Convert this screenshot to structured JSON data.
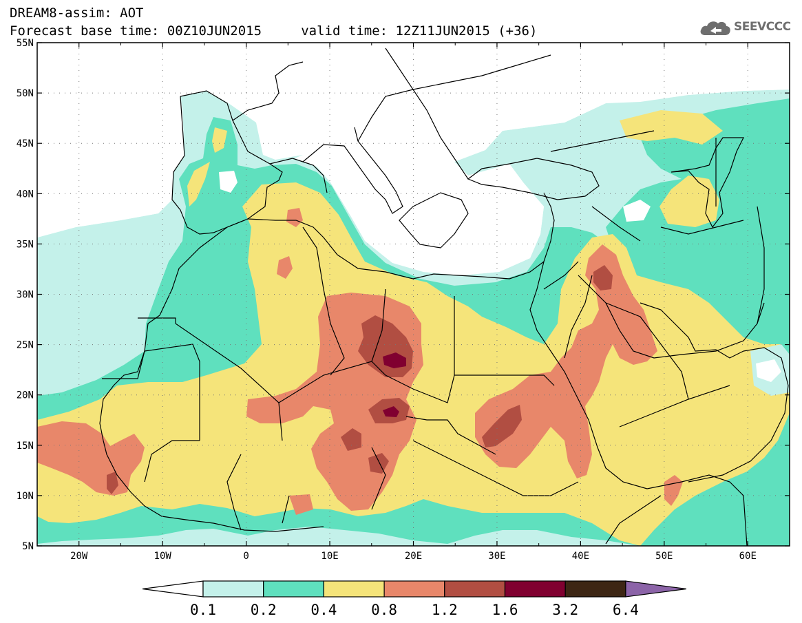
{
  "header": {
    "title_line_1": "DREAM8-assim: AOT",
    "title_line_2": "Forecast base time: 00Z10JUN2015     valid time: 12Z11JUN2015 (+36)",
    "logo_text": "SEEVCCC",
    "logo_icon": "cloud-logo-icon"
  },
  "map": {
    "lon_range": [
      -25,
      65
    ],
    "lat_range": [
      5,
      55
    ],
    "x_ticks": [
      {
        "lon": -20,
        "label": "20W"
      },
      {
        "lon": -10,
        "label": "10W"
      },
      {
        "lon": 0,
        "label": "0"
      },
      {
        "lon": 10,
        "label": "10E"
      },
      {
        "lon": 20,
        "label": "20E"
      },
      {
        "lon": 30,
        "label": "30E"
      },
      {
        "lon": 40,
        "label": "40E"
      },
      {
        "lon": 50,
        "label": "50E"
      },
      {
        "lon": 60,
        "label": "60E"
      }
    ],
    "y_ticks": [
      {
        "lat": 55,
        "label": "55N"
      },
      {
        "lat": 50,
        "label": "50N"
      },
      {
        "lat": 45,
        "label": "45N"
      },
      {
        "lat": 40,
        "label": "40N"
      },
      {
        "lat": 35,
        "label": "35N"
      },
      {
        "lat": 30,
        "label": "30N"
      },
      {
        "lat": 25,
        "label": "25N"
      },
      {
        "lat": 20,
        "label": "20N"
      },
      {
        "lat": 15,
        "label": "15N"
      },
      {
        "lat": 10,
        "label": "10N"
      },
      {
        "lat": 5,
        "label": "5N"
      }
    ],
    "grid": true
  },
  "colorbar": {
    "levels": [
      "0.1",
      "0.2",
      "0.4",
      "0.8",
      "1.2",
      "1.6",
      "3.2",
      "6.4"
    ],
    "colors": [
      "#c4f1ea",
      "#5fe0be",
      "#f5e47a",
      "#e8876a",
      "#b14e42",
      "#800030",
      "#3d2614"
    ],
    "under_color": "#ffffff",
    "over_color": "#8c64a8"
  }
}
